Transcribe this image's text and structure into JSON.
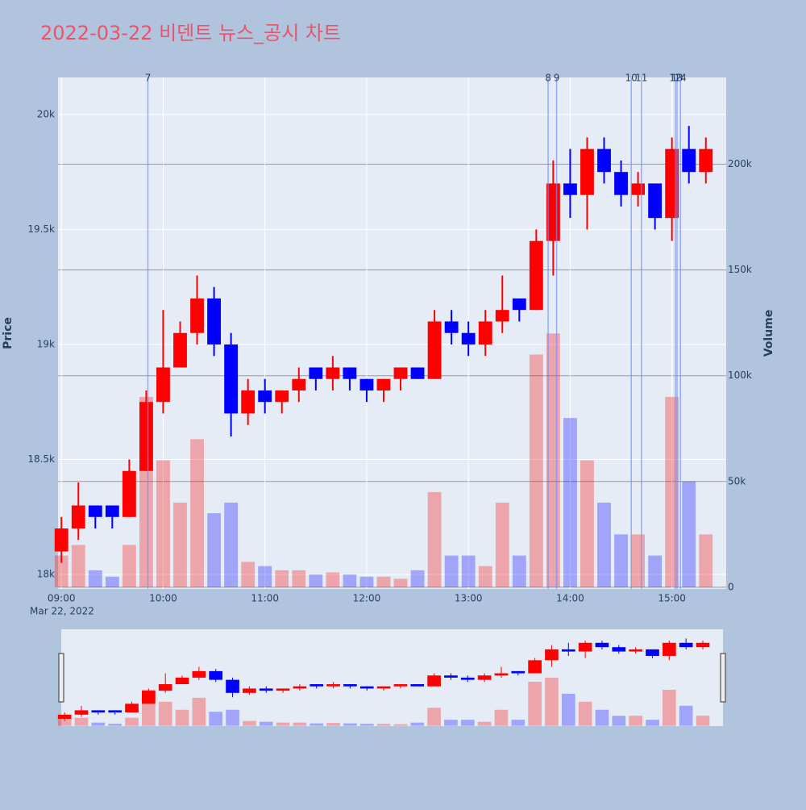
{
  "chart_data": {
    "type": "candlestick",
    "title": "2022-03-22 비덴트 뉴스_공시 차트",
    "y_title": "Price",
    "y2_title": "Volume",
    "x_date_label": "Mar 22, 2022",
    "up_color": "#ff0000",
    "down_color": "#0000ff",
    "grid": true,
    "x": [
      "2022-03-22 09:00",
      "2022-03-22 09:10",
      "2022-03-22 09:20",
      "2022-03-22 09:30",
      "2022-03-22 09:40",
      "2022-03-22 09:50",
      "2022-03-22 10:00",
      "2022-03-22 10:10",
      "2022-03-22 10:20",
      "2022-03-22 10:30",
      "2022-03-22 10:40",
      "2022-03-22 10:50",
      "2022-03-22 11:00",
      "2022-03-22 11:10",
      "2022-03-22 11:20",
      "2022-03-22 11:30",
      "2022-03-22 11:40",
      "2022-03-22 11:50",
      "2022-03-22 12:00",
      "2022-03-22 12:10",
      "2022-03-22 12:20",
      "2022-03-22 12:30",
      "2022-03-22 12:40",
      "2022-03-22 12:50",
      "2022-03-22 13:00",
      "2022-03-22 13:10",
      "2022-03-22 13:20",
      "2022-03-22 13:30",
      "2022-03-22 13:40",
      "2022-03-22 13:50",
      "2022-03-22 14:00",
      "2022-03-22 14:10",
      "2022-03-22 14:20",
      "2022-03-22 14:30",
      "2022-03-22 14:40",
      "2022-03-22 14:50",
      "2022-03-22 15:00",
      "2022-03-22 15:10",
      "2022-03-22 15:20"
    ],
    "open": [
      18100,
      18200,
      18300,
      18300,
      18250,
      18450,
      18750,
      18900,
      19050,
      19200,
      19000,
      18700,
      18800,
      18750,
      18800,
      18900,
      18850,
      18900,
      18850,
      18800,
      18850,
      18900,
      18850,
      19100,
      19050,
      19000,
      19100,
      19200,
      19150,
      19450,
      19700,
      19650,
      19850,
      19750,
      19650,
      19700,
      19550,
      19850,
      19750
    ],
    "high": [
      18250,
      18400,
      18300,
      18300,
      18500,
      18800,
      19150,
      19100,
      19300,
      19250,
      19050,
      18850,
      18850,
      18800,
      18900,
      18900,
      18950,
      18900,
      18850,
      18850,
      18900,
      18900,
      19150,
      19150,
      19100,
      19150,
      19300,
      19200,
      19500,
      19800,
      19850,
      19900,
      19900,
      19800,
      19750,
      19700,
      19900,
      19950,
      19900
    ],
    "low": [
      18050,
      18150,
      18200,
      18200,
      18250,
      18450,
      18700,
      18900,
      19000,
      18950,
      18600,
      18650,
      18700,
      18700,
      18750,
      18800,
      18800,
      18800,
      18750,
      18750,
      18800,
      18850,
      18850,
      19000,
      18950,
      18950,
      19050,
      19100,
      19150,
      19300,
      19550,
      19500,
      19700,
      19600,
      19600,
      19500,
      19450,
      19700,
      19700
    ],
    "close": [
      18200,
      18300,
      18250,
      18250,
      18450,
      18750,
      18900,
      19050,
      19200,
      19000,
      18700,
      18800,
      18750,
      18800,
      18850,
      18850,
      18900,
      18850,
      18800,
      18850,
      18900,
      18850,
      19100,
      19050,
      19000,
      19100,
      19150,
      19150,
      19450,
      19700,
      19650,
      19850,
      19750,
      19650,
      19700,
      19550,
      19850,
      19750,
      19850
    ],
    "volume": [
      15000,
      20000,
      8000,
      5000,
      20000,
      90000,
      60000,
      40000,
      70000,
      35000,
      40000,
      12000,
      10000,
      8000,
      8000,
      6000,
      7000,
      6000,
      5000,
      5000,
      4000,
      8000,
      45000,
      15000,
      15000,
      10000,
      40000,
      15000,
      110000,
      120000,
      80000,
      60000,
      40000,
      25000,
      25000,
      15000,
      90000,
      50000,
      25000
    ],
    "events": [
      {
        "x": "2022-03-22 09:51",
        "label": "7"
      },
      {
        "x": "2022-03-22 13:47",
        "label": "8"
      },
      {
        "x": "2022-03-22 13:52",
        "label": "9"
      },
      {
        "x": "2022-03-22 14:36",
        "label": "10"
      },
      {
        "x": "2022-03-22 14:42",
        "label": "11"
      },
      {
        "x": "2022-03-22 15:02",
        "label": "12"
      },
      {
        "x": "2022-03-22 15:03",
        "label": "13"
      },
      {
        "x": "2022-03-22 15:05",
        "label": "14"
      }
    ],
    "xlim": [
      "2022-03-22 08:58",
      "2022-03-22 15:32"
    ],
    "xticks": [
      {
        "value": "2022-03-22 09:00",
        "label": "09:00"
      },
      {
        "value": "2022-03-22 10:00",
        "label": "10:00"
      },
      {
        "value": "2022-03-22 11:00",
        "label": "11:00"
      },
      {
        "value": "2022-03-22 12:00",
        "label": "12:00"
      },
      {
        "value": "2022-03-22 13:00",
        "label": "13:00"
      },
      {
        "value": "2022-03-22 14:00",
        "label": "14:00"
      },
      {
        "value": "2022-03-22 15:00",
        "label": "15:00"
      }
    ],
    "ylim": [
      17937,
      20161
    ],
    "yticks": [
      {
        "value": 18000,
        "label": "18k"
      },
      {
        "value": 18500,
        "label": "18.5k"
      },
      {
        "value": 19000,
        "label": "19k"
      },
      {
        "value": 19500,
        "label": "19.5k"
      },
      {
        "value": 20000,
        "label": "20k"
      }
    ],
    "y2lim": [
      -800,
      241000
    ],
    "y2ticks": [
      0,
      {
        "value": 50000,
        "label": "50k"
      },
      {
        "value": 100000,
        "label": "100k"
      },
      {
        "value": 150000,
        "label": "150k"
      },
      {
        "value": 200000,
        "label": "200k"
      }
    ]
  }
}
